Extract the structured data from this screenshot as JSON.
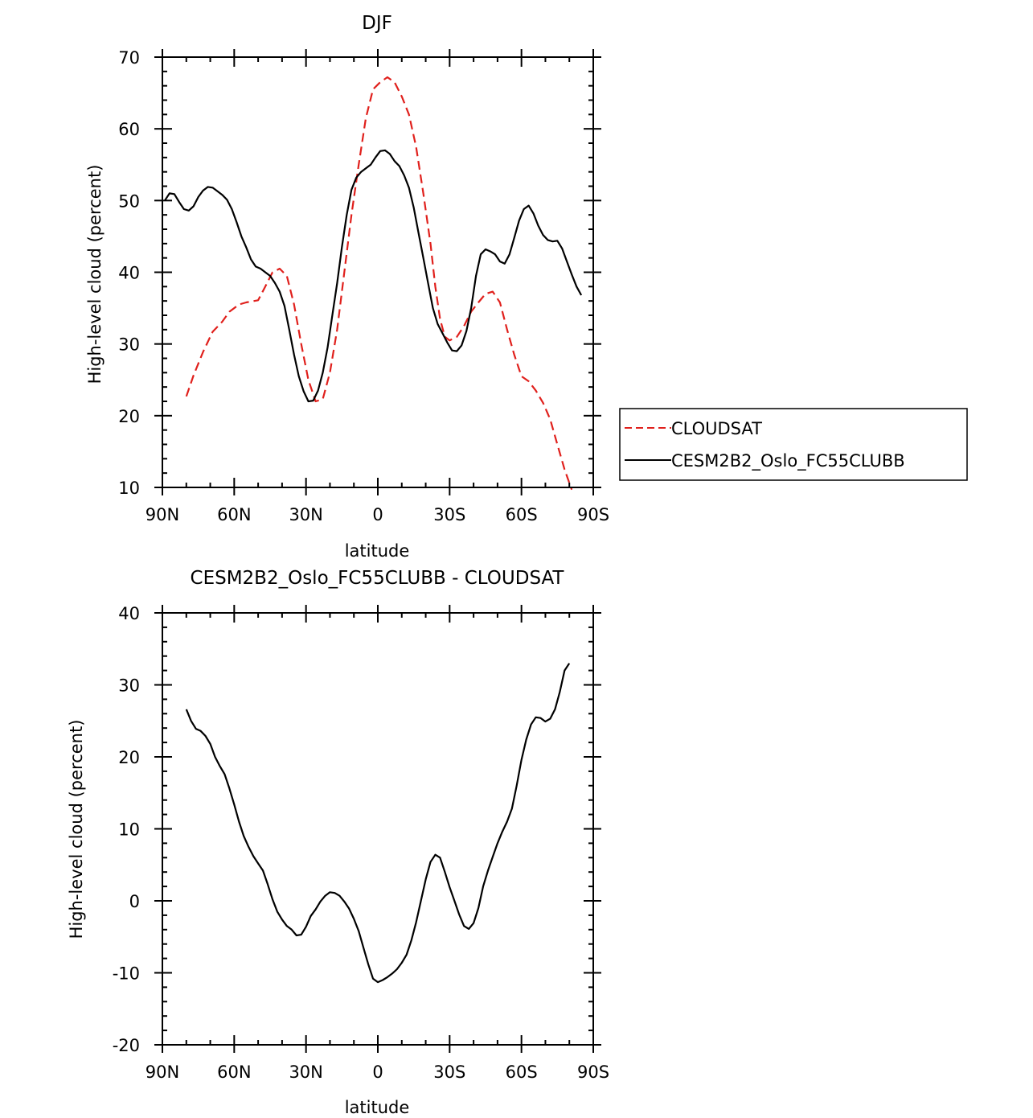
{
  "chart_data": [
    {
      "type": "line",
      "title": "DJF",
      "xlabel": "latitude",
      "ylabel": "High-level cloud (percent)",
      "xlim": [
        -90,
        90
      ],
      "ylim": [
        10,
        70
      ],
      "x_ticks": [
        {
          "value": -90,
          "label": "90N"
        },
        {
          "value": -60,
          "label": "60N"
        },
        {
          "value": -30,
          "label": "30N"
        },
        {
          "value": 0,
          "label": "0"
        },
        {
          "value": 30,
          "label": "30S"
        },
        {
          "value": 60,
          "label": "60S"
        },
        {
          "value": 90,
          "label": "90S"
        }
      ],
      "y_ticks": [
        10,
        20,
        30,
        40,
        50,
        60,
        70
      ],
      "grid": false,
      "legend_position": "right",
      "series": [
        {
          "name": "CLOUDSAT",
          "color": "#e0201c",
          "dash": "dashed",
          "points": [
            [
              -80,
              22.7
            ],
            [
              -77,
              25.6
            ],
            [
              -73,
              28.9
            ],
            [
              -69,
              31.7
            ],
            [
              -65,
              33.1
            ],
            [
              -62,
              34.5
            ],
            [
              -58,
              35.5
            ],
            [
              -55,
              35.8
            ],
            [
              -50,
              36.1
            ],
            [
              -47,
              38.0
            ],
            [
              -44,
              40.0
            ],
            [
              -41,
              40.5
            ],
            [
              -38,
              39.5
            ],
            [
              -35,
              35.5
            ],
            [
              -32,
              30.0
            ],
            [
              -29,
              25.0
            ],
            [
              -26,
              22.0
            ],
            [
              -23,
              22.3
            ],
            [
              -20,
              26.0
            ],
            [
              -17,
              32.0
            ],
            [
              -14,
              40.0
            ],
            [
              -11,
              48.0
            ],
            [
              -8,
              55.0
            ],
            [
              -5,
              61.5
            ],
            [
              -2,
              65.5
            ],
            [
              1,
              66.5
            ],
            [
              4,
              67.2
            ],
            [
              7,
              66.5
            ],
            [
              10,
              64.5
            ],
            [
              13,
              62.0
            ],
            [
              16,
              57.5
            ],
            [
              19,
              51.0
            ],
            [
              22,
              44.0
            ],
            [
              24,
              38.0
            ],
            [
              26,
              33.5
            ],
            [
              28,
              31.0
            ],
            [
              30,
              30.5
            ],
            [
              33,
              31.0
            ],
            [
              36,
              32.5
            ],
            [
              39,
              34.5
            ],
            [
              42,
              35.8
            ],
            [
              45,
              37.0
            ],
            [
              48,
              37.3
            ],
            [
              51,
              35.8
            ],
            [
              54,
              32.0
            ],
            [
              57,
              28.5
            ],
            [
              60,
              25.5
            ],
            [
              63,
              24.8
            ],
            [
              66,
              23.5
            ],
            [
              69,
              21.8
            ],
            [
              72,
              19.5
            ],
            [
              75,
              16.0
            ],
            [
              78,
              12.5
            ],
            [
              81,
              9.7
            ]
          ]
        },
        {
          "name": "CESM2B2_Oslo_FC55CLUBB",
          "color": "#000000",
          "dash": "solid",
          "points": [
            [
              -89,
              50.0
            ],
            [
              -87,
              51.0
            ],
            [
              -85,
              50.9
            ],
            [
              -83,
              49.8
            ],
            [
              -81,
              48.8
            ],
            [
              -79,
              48.6
            ],
            [
              -77,
              49.2
            ],
            [
              -75,
              50.5
            ],
            [
              -73,
              51.4
            ],
            [
              -71,
              51.9
            ],
            [
              -69,
              51.8
            ],
            [
              -67,
              51.3
            ],
            [
              -65,
              50.8
            ],
            [
              -63,
              50.1
            ],
            [
              -61,
              48.8
            ],
            [
              -59,
              47.0
            ],
            [
              -57,
              45.0
            ],
            [
              -55,
              43.5
            ],
            [
              -53,
              41.8
            ],
            [
              -51,
              40.8
            ],
            [
              -49,
              40.5
            ],
            [
              -47,
              40.0
            ],
            [
              -45,
              39.5
            ],
            [
              -43,
              38.5
            ],
            [
              -41,
              37.3
            ],
            [
              -39,
              35.3
            ],
            [
              -37,
              32.0
            ],
            [
              -35,
              28.5
            ],
            [
              -33,
              25.5
            ],
            [
              -31,
              23.4
            ],
            [
              -29,
              22.0
            ],
            [
              -27,
              22.1
            ],
            [
              -25,
              23.5
            ],
            [
              -23,
              26.0
            ],
            [
              -21,
              29.5
            ],
            [
              -19,
              34.0
            ],
            [
              -17,
              38.5
            ],
            [
              -15,
              43.5
            ],
            [
              -13,
              48.0
            ],
            [
              -11,
              51.5
            ],
            [
              -9,
              53.2
            ],
            [
              -7,
              54.0
            ],
            [
              -5,
              54.5
            ],
            [
              -3,
              55.0
            ],
            [
              -1,
              56.0
            ],
            [
              1,
              56.9
            ],
            [
              3,
              57.0
            ],
            [
              5,
              56.5
            ],
            [
              7,
              55.5
            ],
            [
              9,
              54.8
            ],
            [
              11,
              53.5
            ],
            [
              13,
              51.8
            ],
            [
              15,
              49.0
            ],
            [
              17,
              45.5
            ],
            [
              19,
              42.0
            ],
            [
              21,
              38.5
            ],
            [
              23,
              35.0
            ],
            [
              25,
              32.8
            ],
            [
              27,
              31.5
            ],
            [
              29,
              30.2
            ],
            [
              31,
              29.1
            ],
            [
              33,
              29.0
            ],
            [
              35,
              29.8
            ],
            [
              37,
              31.8
            ],
            [
              39,
              35.0
            ],
            [
              41,
              39.5
            ],
            [
              43,
              42.5
            ],
            [
              45,
              43.2
            ],
            [
              47,
              42.9
            ],
            [
              49,
              42.5
            ],
            [
              51,
              41.5
            ],
            [
              53,
              41.2
            ],
            [
              55,
              42.5
            ],
            [
              57,
              44.8
            ],
            [
              59,
              47.2
            ],
            [
              61,
              48.8
            ],
            [
              63,
              49.3
            ],
            [
              65,
              48.2
            ],
            [
              67,
              46.5
            ],
            [
              69,
              45.2
            ],
            [
              71,
              44.5
            ],
            [
              73,
              44.3
            ],
            [
              75,
              44.4
            ],
            [
              77,
              43.3
            ],
            [
              79,
              41.5
            ],
            [
              81,
              39.7
            ],
            [
              83,
              38.0
            ],
            [
              85,
              36.8
            ]
          ]
        }
      ]
    },
    {
      "type": "line",
      "title": "CESM2B2_Oslo_FC55CLUBB - CLOUDSAT",
      "xlabel": "latitude",
      "ylabel": "High-level cloud (percent)",
      "xlim": [
        -90,
        90
      ],
      "ylim": [
        -20,
        40
      ],
      "x_ticks": [
        {
          "value": -90,
          "label": "90N"
        },
        {
          "value": -60,
          "label": "60N"
        },
        {
          "value": -30,
          "label": "30N"
        },
        {
          "value": 0,
          "label": "0"
        },
        {
          "value": 30,
          "label": "30S"
        },
        {
          "value": 60,
          "label": "60S"
        },
        {
          "value": 90,
          "label": "90S"
        }
      ],
      "y_ticks": [
        -20,
        -10,
        0,
        10,
        20,
        30,
        40
      ],
      "grid": false,
      "series": [
        {
          "color": "#000000",
          "dash": "solid",
          "points": [
            [
              -80,
              26.6
            ],
            [
              -78,
              25.0
            ],
            [
              -76,
              23.9
            ],
            [
              -74,
              23.6
            ],
            [
              -72,
              22.9
            ],
            [
              -70,
              21.8
            ],
            [
              -68,
              20.0
            ],
            [
              -66,
              18.7
            ],
            [
              -64,
              17.6
            ],
            [
              -62,
              15.6
            ],
            [
              -60,
              13.4
            ],
            [
              -58,
              11.0
            ],
            [
              -56,
              9.0
            ],
            [
              -54,
              7.5
            ],
            [
              -52,
              6.2
            ],
            [
              -50,
              5.2
            ],
            [
              -48,
              4.2
            ],
            [
              -46,
              2.3
            ],
            [
              -44,
              0.2
            ],
            [
              -42,
              -1.5
            ],
            [
              -40,
              -2.6
            ],
            [
              -38,
              -3.5
            ],
            [
              -36,
              -4.0
            ],
            [
              -34,
              -4.8
            ],
            [
              -32,
              -4.7
            ],
            [
              -30,
              -3.6
            ],
            [
              -28,
              -2.1
            ],
            [
              -26,
              -1.2
            ],
            [
              -24,
              -0.1
            ],
            [
              -22,
              0.7
            ],
            [
              -20,
              1.2
            ],
            [
              -18,
              1.1
            ],
            [
              -16,
              0.7
            ],
            [
              -14,
              -0.1
            ],
            [
              -12,
              -1.1
            ],
            [
              -10,
              -2.5
            ],
            [
              -8,
              -4.2
            ],
            [
              -6,
              -6.5
            ],
            [
              -4,
              -8.8
            ],
            [
              -2,
              -10.8
            ],
            [
              0,
              -11.3
            ],
            [
              2,
              -11.0
            ],
            [
              4,
              -10.6
            ],
            [
              6,
              -10.1
            ],
            [
              8,
              -9.5
            ],
            [
              10,
              -8.6
            ],
            [
              12,
              -7.5
            ],
            [
              14,
              -5.5
            ],
            [
              16,
              -3.0
            ],
            [
              18,
              0.0
            ],
            [
              20,
              3.0
            ],
            [
              22,
              5.4
            ],
            [
              24,
              6.4
            ],
            [
              26,
              6.0
            ],
            [
              28,
              4.0
            ],
            [
              30,
              1.9
            ],
            [
              32,
              0.0
            ],
            [
              34,
              -1.9
            ],
            [
              36,
              -3.5
            ],
            [
              38,
              -3.9
            ],
            [
              40,
              -3.1
            ],
            [
              42,
              -1.0
            ],
            [
              44,
              2.0
            ],
            [
              46,
              4.2
            ],
            [
              48,
              6.1
            ],
            [
              50,
              8.0
            ],
            [
              52,
              9.6
            ],
            [
              54,
              11.0
            ],
            [
              56,
              12.8
            ],
            [
              58,
              16.0
            ],
            [
              60,
              19.6
            ],
            [
              62,
              22.4
            ],
            [
              64,
              24.5
            ],
            [
              66,
              25.5
            ],
            [
              68,
              25.4
            ],
            [
              70,
              24.9
            ],
            [
              72,
              25.3
            ],
            [
              74,
              26.6
            ],
            [
              76,
              29.0
            ],
            [
              78,
              32.0
            ],
            [
              80,
              33.0
            ]
          ]
        }
      ]
    }
  ]
}
